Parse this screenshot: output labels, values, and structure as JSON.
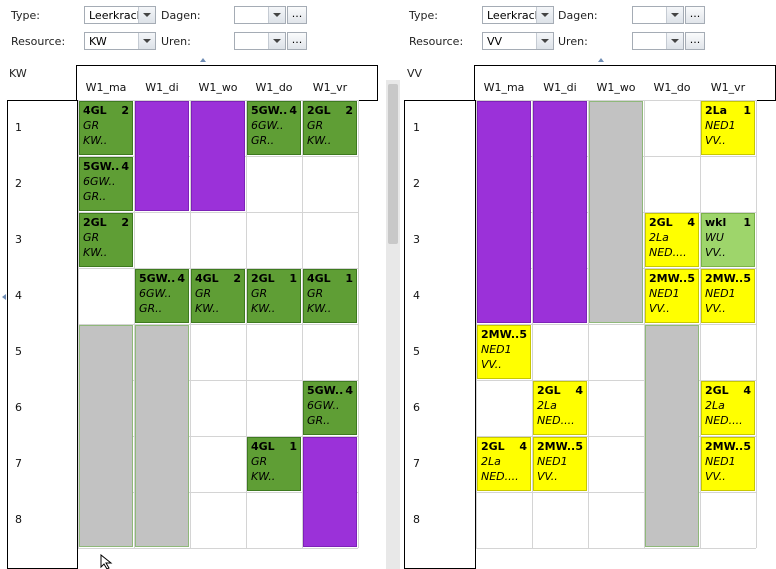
{
  "left_panel": {
    "type_label": "Type:",
    "type_value": "Leerkrach",
    "resource_label": "Resource:",
    "resource_value": "KW",
    "dagen_label": "Dagen:",
    "uren_label": "Uren:",
    "ellipsis": "...",
    "resource_title": "KW",
    "columns": [
      "W1_ma",
      "W1_di",
      "W1_wo",
      "W1_do",
      "W1_vr"
    ],
    "rows": [
      "1",
      "2",
      "3",
      "4",
      "5",
      "6",
      "7",
      "8"
    ],
    "cells": [
      {
        "kind": "lesson",
        "color": "green",
        "col": 0,
        "row": 0,
        "span": 1,
        "line1": "4GL",
        "num": "2",
        "line2": "GR",
        "line3": "KW.."
      },
      {
        "kind": "lesson",
        "color": "green",
        "col": 0,
        "row": 1,
        "span": 1,
        "line1": "5GW..",
        "num": "4",
        "line2": "6GW..",
        "line3": "GR.."
      },
      {
        "kind": "lesson",
        "color": "green",
        "col": 0,
        "row": 2,
        "span": 1,
        "line1": "2GL",
        "num": "2",
        "line2": "GR",
        "line3": "KW.."
      },
      {
        "kind": "block",
        "color": "gray",
        "col": 0,
        "row": 4,
        "span": 4
      },
      {
        "kind": "block",
        "color": "purple",
        "col": 1,
        "row": 0,
        "span": 2
      },
      {
        "kind": "lesson",
        "color": "green",
        "col": 1,
        "row": 3,
        "span": 1,
        "line1": "5GW..",
        "num": "4",
        "line2": "6GW..",
        "line3": "GR.."
      },
      {
        "kind": "block",
        "color": "gray",
        "col": 1,
        "row": 4,
        "span": 4
      },
      {
        "kind": "block",
        "color": "purple",
        "col": 2,
        "row": 0,
        "span": 2
      },
      {
        "kind": "lesson",
        "color": "green",
        "col": 2,
        "row": 3,
        "span": 1,
        "line1": "4GL",
        "num": "2",
        "line2": "GR",
        "line3": "KW.."
      },
      {
        "kind": "lesson",
        "color": "green",
        "col": 3,
        "row": 0,
        "span": 1,
        "line1": "5GW..",
        "num": "4",
        "line2": "6GW..",
        "line3": "GR.."
      },
      {
        "kind": "lesson",
        "color": "green",
        "col": 3,
        "row": 3,
        "span": 1,
        "line1": "2GL",
        "num": "1",
        "line2": "GR",
        "line3": "KW.."
      },
      {
        "kind": "lesson",
        "color": "green",
        "col": 3,
        "row": 6,
        "span": 1,
        "line1": "4GL",
        "num": "1",
        "line2": "GR",
        "line3": "KW.."
      },
      {
        "kind": "lesson",
        "color": "green",
        "col": 4,
        "row": 0,
        "span": 1,
        "line1": "2GL",
        "num": "2",
        "line2": "GR",
        "line3": "KW.."
      },
      {
        "kind": "lesson",
        "color": "green",
        "col": 4,
        "row": 3,
        "span": 1,
        "line1": "4GL",
        "num": "1",
        "line2": "GR",
        "line3": "KW.."
      },
      {
        "kind": "lesson",
        "color": "green",
        "col": 4,
        "row": 5,
        "span": 1,
        "line1": "5GW..",
        "num": "4",
        "line2": "6GW..",
        "line3": "GR.."
      },
      {
        "kind": "block",
        "color": "purple",
        "col": 4,
        "row": 6,
        "span": 2
      }
    ]
  },
  "right_panel": {
    "type_label": "Type:",
    "type_value": "Leerkrach",
    "resource_label": "Resource:",
    "resource_value": "VV",
    "dagen_label": "Dagen:",
    "uren_label": "Uren:",
    "ellipsis": "...",
    "resource_title": "VV",
    "columns": [
      "W1_ma",
      "W1_di",
      "W1_wo",
      "W1_do",
      "W1_vr"
    ],
    "rows": [
      "1",
      "2",
      "3",
      "4",
      "5",
      "6",
      "7",
      "8"
    ],
    "cells": [
      {
        "kind": "block",
        "color": "purple",
        "col": 0,
        "row": 0,
        "span": 4
      },
      {
        "kind": "lesson",
        "color": "yellow",
        "col": 0,
        "row": 4,
        "span": 1,
        "line1": "2MW..",
        "num": "5",
        "line2": "NED1",
        "line3": "VV.."
      },
      {
        "kind": "lesson",
        "color": "yellow",
        "col": 0,
        "row": 6,
        "span": 1,
        "line1": "2GL",
        "num": "4",
        "line2": "2La",
        "line3": "NED...."
      },
      {
        "kind": "block",
        "color": "purple",
        "col": 1,
        "row": 0,
        "span": 4
      },
      {
        "kind": "lesson",
        "color": "yellow",
        "col": 1,
        "row": 5,
        "span": 1,
        "line1": "2GL",
        "num": "4",
        "line2": "2La",
        "line3": "NED...."
      },
      {
        "kind": "lesson",
        "color": "yellow",
        "col": 1,
        "row": 6,
        "span": 1,
        "line1": "2MW..",
        "num": "5",
        "line2": "NED1",
        "line3": "VV.."
      },
      {
        "kind": "block",
        "color": "gray",
        "col": 2,
        "row": 0,
        "span": 4
      },
      {
        "kind": "lesson",
        "color": "yellow",
        "col": 3,
        "row": 2,
        "span": 1,
        "line1": "2GL",
        "num": "4",
        "line2": "2La",
        "line3": "NED...."
      },
      {
        "kind": "lesson",
        "color": "yellow",
        "col": 3,
        "row": 3,
        "span": 1,
        "line1": "2MW..",
        "num": "5",
        "line2": "NED1",
        "line3": "VV.."
      },
      {
        "kind": "block",
        "color": "gray",
        "col": 3,
        "row": 4,
        "span": 4
      },
      {
        "kind": "lesson",
        "color": "yellow",
        "col": 4,
        "row": 0,
        "span": 1,
        "line1": "2La",
        "num": "1",
        "line2": "NED1",
        "line3": "VV.."
      },
      {
        "kind": "lesson",
        "color": "lgreen",
        "col": 4,
        "row": 2,
        "span": 1,
        "line1": "wkl",
        "num": "1",
        "line2": "WU",
        "line3": "VV.."
      },
      {
        "kind": "lesson",
        "color": "yellow",
        "col": 4,
        "row": 3,
        "span": 1,
        "line1": "2MW..",
        "num": "5",
        "line2": "NED1",
        "line3": "VV.."
      },
      {
        "kind": "lesson",
        "color": "yellow",
        "col": 4,
        "row": 5,
        "span": 1,
        "line1": "2GL",
        "num": "4",
        "line2": "2La",
        "line3": "NED...."
      },
      {
        "kind": "lesson",
        "color": "yellow",
        "col": 4,
        "row": 6,
        "span": 1,
        "line1": "2MW..",
        "num": "5",
        "line2": "NED1",
        "line3": "VV.."
      }
    ]
  }
}
